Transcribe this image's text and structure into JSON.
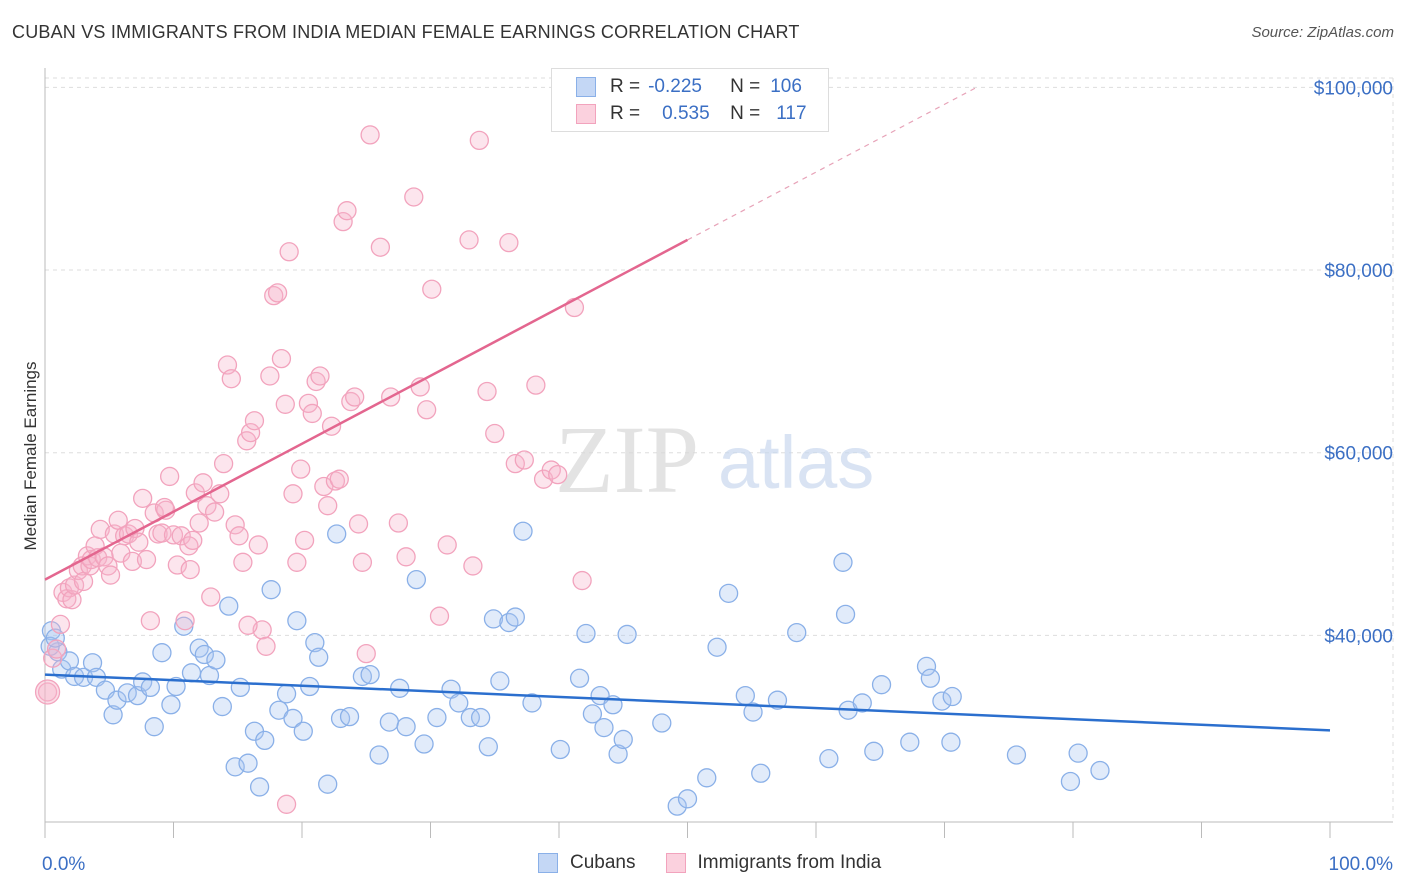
{
  "header": {
    "title": "CUBAN VS IMMIGRANTS FROM INDIA MEDIAN FEMALE EARNINGS CORRELATION CHART",
    "source": "Source: ZipAtlas.com"
  },
  "legend": {
    "r_label": "R =",
    "n_label": "N =",
    "series": [
      {
        "r": "-0.225",
        "n": "106"
      },
      {
        "r": "0.535",
        "n": "117"
      }
    ]
  },
  "watermark": {
    "zip": "ZIP",
    "atlas": "atlas"
  },
  "chart_data": {
    "type": "scatter",
    "title": "CUBAN VS IMMIGRANTS FROM INDIA MEDIAN FEMALE EARNINGS CORRELATION CHART",
    "xlabel": "",
    "ylabel": "Median Female Earnings",
    "xlim": [
      0,
      100
    ],
    "ylim": [
      20000,
      103000
    ],
    "x_tick_labels": [
      "0.0%",
      "100.0%"
    ],
    "y_ticks": [
      40000,
      60000,
      80000,
      100000
    ],
    "y_tick_labels": [
      "$40,000",
      "$60,000",
      "$80,000",
      "$100,000"
    ],
    "colors": {
      "cubans": "#8ab0e8",
      "india": "#f2a3bd",
      "cubans_line": "#2b6fce",
      "india_line": "#e3668f"
    },
    "series": [
      {
        "name": "Cubans",
        "r": -0.225,
        "n": 106,
        "trend": {
          "x": [
            0,
            100
          ],
          "y": [
            35700,
            29600
          ]
        },
        "points": [
          [
            0.5,
            40500
          ],
          [
            1.0,
            38200
          ],
          [
            1.3,
            36300
          ],
          [
            1.9,
            37200
          ],
          [
            2.3,
            35500
          ],
          [
            3.0,
            35400
          ],
          [
            3.7,
            37000
          ],
          [
            4.0,
            35400
          ],
          [
            4.7,
            34000
          ],
          [
            5.3,
            31300
          ],
          [
            5.6,
            32900
          ],
          [
            6.4,
            33700
          ],
          [
            7.2,
            33400
          ],
          [
            7.6,
            34900
          ],
          [
            8.2,
            34300
          ],
          [
            8.5,
            30000
          ],
          [
            9.1,
            38100
          ],
          [
            9.8,
            32400
          ],
          [
            10.2,
            34400
          ],
          [
            10.8,
            41000
          ],
          [
            11.4,
            35900
          ],
          [
            12.0,
            38600
          ],
          [
            12.4,
            37900
          ],
          [
            12.8,
            35600
          ],
          [
            13.3,
            37300
          ],
          [
            13.8,
            32200
          ],
          [
            14.3,
            43200
          ],
          [
            14.8,
            25600
          ],
          [
            15.2,
            34300
          ],
          [
            15.8,
            26000
          ],
          [
            16.3,
            29500
          ],
          [
            16.7,
            23400
          ],
          [
            17.1,
            28500
          ],
          [
            17.6,
            45000
          ],
          [
            18.2,
            31800
          ],
          [
            18.8,
            33600
          ],
          [
            19.3,
            30900
          ],
          [
            19.6,
            41600
          ],
          [
            20.1,
            29500
          ],
          [
            20.6,
            34400
          ],
          [
            21.0,
            39200
          ],
          [
            21.3,
            37600
          ],
          [
            22.0,
            23700
          ],
          [
            22.7,
            51100
          ],
          [
            23.0,
            30900
          ],
          [
            23.7,
            31100
          ],
          [
            24.7,
            35500
          ],
          [
            25.3,
            35700
          ],
          [
            26.0,
            26900
          ],
          [
            26.8,
            30500
          ],
          [
            27.6,
            34200
          ],
          [
            28.1,
            30000
          ],
          [
            28.9,
            46100
          ],
          [
            29.5,
            28100
          ],
          [
            30.5,
            31000
          ],
          [
            31.6,
            34100
          ],
          [
            32.2,
            32600
          ],
          [
            33.1,
            31000
          ],
          [
            33.9,
            31000
          ],
          [
            34.5,
            27800
          ],
          [
            34.9,
            41800
          ],
          [
            35.4,
            35000
          ],
          [
            36.1,
            41400
          ],
          [
            36.6,
            42000
          ],
          [
            37.2,
            51400
          ],
          [
            37.9,
            32600
          ],
          [
            40.1,
            27500
          ],
          [
            41.6,
            35300
          ],
          [
            42.1,
            40200
          ],
          [
            42.6,
            31400
          ],
          [
            43.2,
            33400
          ],
          [
            43.5,
            29900
          ],
          [
            44.2,
            32400
          ],
          [
            44.6,
            27000
          ],
          [
            45.0,
            28600
          ],
          [
            45.3,
            40100
          ],
          [
            48.0,
            30400
          ],
          [
            49.2,
            21300
          ],
          [
            50.0,
            22100
          ],
          [
            51.5,
            24400
          ],
          [
            52.3,
            38700
          ],
          [
            53.2,
            44600
          ],
          [
            54.5,
            33400
          ],
          [
            55.1,
            31600
          ],
          [
            55.7,
            24900
          ],
          [
            57.0,
            32900
          ],
          [
            58.5,
            40300
          ],
          [
            61.0,
            26500
          ],
          [
            62.1,
            48000
          ],
          [
            62.3,
            42300
          ],
          [
            62.5,
            31800
          ],
          [
            63.6,
            32600
          ],
          [
            64.5,
            27300
          ],
          [
            65.1,
            34600
          ],
          [
            67.3,
            28300
          ],
          [
            68.6,
            36600
          ],
          [
            68.9,
            35300
          ],
          [
            69.8,
            32800
          ],
          [
            70.5,
            28300
          ],
          [
            70.6,
            33300
          ],
          [
            75.6,
            26900
          ],
          [
            79.8,
            24000
          ],
          [
            80.4,
            27100
          ],
          [
            82.1,
            25200
          ],
          [
            0.4,
            38800
          ],
          [
            0.8,
            39700
          ]
        ]
      },
      {
        "name": "Immigrants from India",
        "r": 0.535,
        "n": 117,
        "trend": {
          "x": [
            0,
            50
          ],
          "y": [
            46100,
            83300
          ]
        },
        "trend_dashed": {
          "x": [
            50,
            72.5
          ],
          "y": [
            83300,
            100000
          ]
        },
        "points": [
          [
            0.2,
            33800
          ],
          [
            0.6,
            37500
          ],
          [
            0.9,
            38500
          ],
          [
            1.2,
            41200
          ],
          [
            1.4,
            44700
          ],
          [
            1.7,
            44000
          ],
          [
            1.9,
            45200
          ],
          [
            2.1,
            43900
          ],
          [
            2.3,
            45500
          ],
          [
            2.6,
            47100
          ],
          [
            2.9,
            47600
          ],
          [
            3.0,
            45900
          ],
          [
            3.3,
            48700
          ],
          [
            3.5,
            47600
          ],
          [
            3.6,
            48300
          ],
          [
            3.9,
            49800
          ],
          [
            4.1,
            48500
          ],
          [
            4.3,
            51600
          ],
          [
            4.6,
            48600
          ],
          [
            4.9,
            47600
          ],
          [
            5.1,
            46600
          ],
          [
            5.4,
            51100
          ],
          [
            5.7,
            52600
          ],
          [
            5.9,
            49000
          ],
          [
            6.2,
            50900
          ],
          [
            6.5,
            51100
          ],
          [
            6.8,
            48100
          ],
          [
            7.0,
            51700
          ],
          [
            7.3,
            50200
          ],
          [
            7.6,
            55000
          ],
          [
            7.9,
            48300
          ],
          [
            8.2,
            41600
          ],
          [
            8.5,
            53400
          ],
          [
            8.8,
            51100
          ],
          [
            9.1,
            51200
          ],
          [
            9.4,
            53700
          ],
          [
            9.7,
            57400
          ],
          [
            10.0,
            51000
          ],
          [
            10.3,
            47700
          ],
          [
            10.6,
            50900
          ],
          [
            10.9,
            41600
          ],
          [
            11.2,
            49800
          ],
          [
            11.5,
            50400
          ],
          [
            11.7,
            55600
          ],
          [
            12.0,
            52300
          ],
          [
            12.3,
            56700
          ],
          [
            12.6,
            54200
          ],
          [
            12.9,
            44200
          ],
          [
            13.2,
            53500
          ],
          [
            13.6,
            55500
          ],
          [
            13.9,
            58800
          ],
          [
            14.2,
            69600
          ],
          [
            14.5,
            68100
          ],
          [
            14.8,
            52100
          ],
          [
            15.1,
            50900
          ],
          [
            15.4,
            48000
          ],
          [
            15.7,
            61300
          ],
          [
            16.0,
            62200
          ],
          [
            16.3,
            63500
          ],
          [
            16.6,
            49900
          ],
          [
            16.9,
            40600
          ],
          [
            17.2,
            38800
          ],
          [
            17.5,
            68400
          ],
          [
            17.8,
            77200
          ],
          [
            18.1,
            77500
          ],
          [
            18.4,
            70300
          ],
          [
            18.7,
            65300
          ],
          [
            19.0,
            82000
          ],
          [
            19.3,
            55500
          ],
          [
            19.6,
            48000
          ],
          [
            19.9,
            58200
          ],
          [
            20.2,
            50400
          ],
          [
            20.5,
            65400
          ],
          [
            20.8,
            64300
          ],
          [
            21.1,
            67800
          ],
          [
            21.4,
            68400
          ],
          [
            21.7,
            56300
          ],
          [
            22.0,
            54200
          ],
          [
            22.3,
            62900
          ],
          [
            22.6,
            56900
          ],
          [
            22.9,
            57100
          ],
          [
            23.2,
            85300
          ],
          [
            23.5,
            86500
          ],
          [
            23.8,
            65600
          ],
          [
            24.1,
            66100
          ],
          [
            24.4,
            52200
          ],
          [
            24.7,
            48000
          ],
          [
            25.0,
            38000
          ],
          [
            25.3,
            94800
          ],
          [
            26.1,
            82500
          ],
          [
            26.9,
            66100
          ],
          [
            27.5,
            52300
          ],
          [
            28.1,
            48600
          ],
          [
            28.7,
            88000
          ],
          [
            29.2,
            67200
          ],
          [
            29.7,
            64700
          ],
          [
            30.1,
            77900
          ],
          [
            30.7,
            42100
          ],
          [
            31.3,
            49900
          ],
          [
            33.0,
            83300
          ],
          [
            33.3,
            47600
          ],
          [
            33.8,
            94200
          ],
          [
            34.4,
            66700
          ],
          [
            35.0,
            62100
          ],
          [
            36.1,
            83000
          ],
          [
            36.6,
            58800
          ],
          [
            37.3,
            59200
          ],
          [
            38.2,
            67400
          ],
          [
            38.8,
            57100
          ],
          [
            39.4,
            58100
          ],
          [
            39.9,
            57600
          ],
          [
            41.2,
            75900
          ],
          [
            41.8,
            46000
          ],
          [
            18.8,
            21500
          ],
          [
            15.8,
            41100
          ],
          [
            11.3,
            47200
          ],
          [
            9.3,
            54000
          ]
        ]
      }
    ]
  },
  "bottom_legend": {
    "items": [
      {
        "label": "Cubans"
      },
      {
        "label": "Immigrants from India"
      }
    ]
  }
}
